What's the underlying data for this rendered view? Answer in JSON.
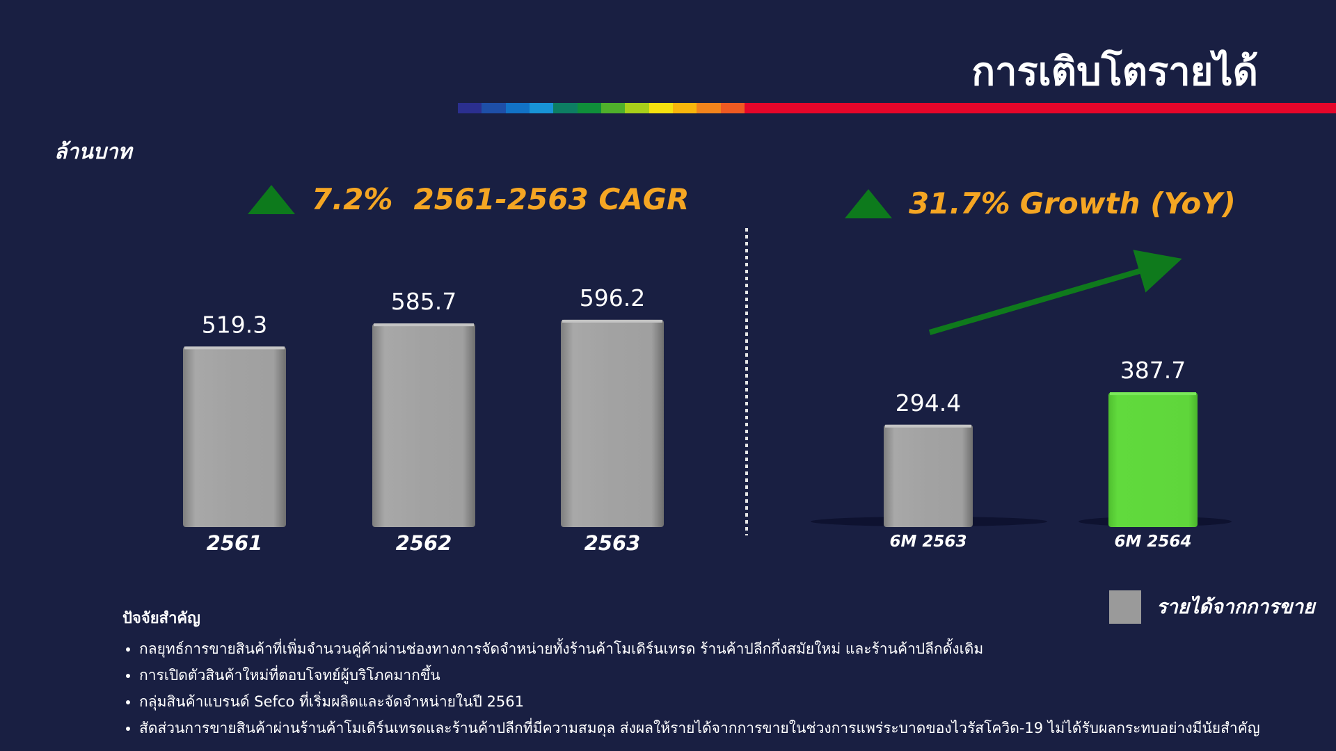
{
  "page": {
    "title": "การเติบโตรายได้",
    "unit_label": "ล้านบาท",
    "cagr_headline": {
      "value": "7.2%",
      "text": "2561-2563 CAGR"
    },
    "yoy_headline": {
      "value": "31.7%",
      "text": "Growth (YoY)"
    },
    "rainbow_colors": [
      "#2b2f8f",
      "#1e4fa8",
      "#1272c6",
      "#1893d6",
      "#0d7e63",
      "#0f8f3a",
      "#4fb02b",
      "#a8cf1a",
      "#f5e10f",
      "#f8b60c",
      "#f2841c",
      "#ef5a22",
      "#e5062a"
    ]
  },
  "chart_data": [
    {
      "type": "bar",
      "categories": [
        "2561",
        "2562",
        "2563"
      ],
      "values": [
        519.3,
        585.7,
        596.2
      ],
      "value_labels": [
        "519.3",
        "585.7",
        "596.2"
      ],
      "colors": [
        "#9a9a9a",
        "#9a9a9a",
        "#9a9a9a"
      ]
    },
    {
      "type": "bar",
      "categories": [
        "6M 2563",
        "6M 2564"
      ],
      "values": [
        294.4,
        387.7
      ],
      "value_labels": [
        "294.4",
        "387.7"
      ],
      "colors": [
        "#9a9a9a",
        "#5dd53a"
      ]
    }
  ],
  "legend": {
    "label": "รายได้จากการขาย",
    "color": "#9a9a9a"
  },
  "key_factors": {
    "heading": "ปัจจัยสำคัญ",
    "items": [
      "กลยุทธ์การขายสินค้าที่เพิ่มจำนวนคู่ค้าผ่านช่องทางการจัดจำหน่ายทั้งร้านค้าโมเดิร์นเทรด ร้านค้าปลีกกึ่งสมัยใหม่ และร้านค้าปลีกดั้งเดิม",
      "การเปิดตัวสินค้าใหม่ที่ตอบโจทย์ผู้บริโภคมากขึ้น",
      "กลุ่มสินค้าแบรนด์ Sefco ที่เริ่มผลิตและจัดจำหน่ายในปี 2561",
      "สัดส่วนการขายสินค้าผ่านร้านค้าโมเดิร์นเทรดและร้านค้าปลีกที่มีความสมดุล ส่งผลให้รายได้จากการขายในช่วงการแพร่ระบาดของไวรัสโควิด-19 ไม่ได้รับผลกระทบอย่างมีนัยสำคัญ"
    ]
  }
}
